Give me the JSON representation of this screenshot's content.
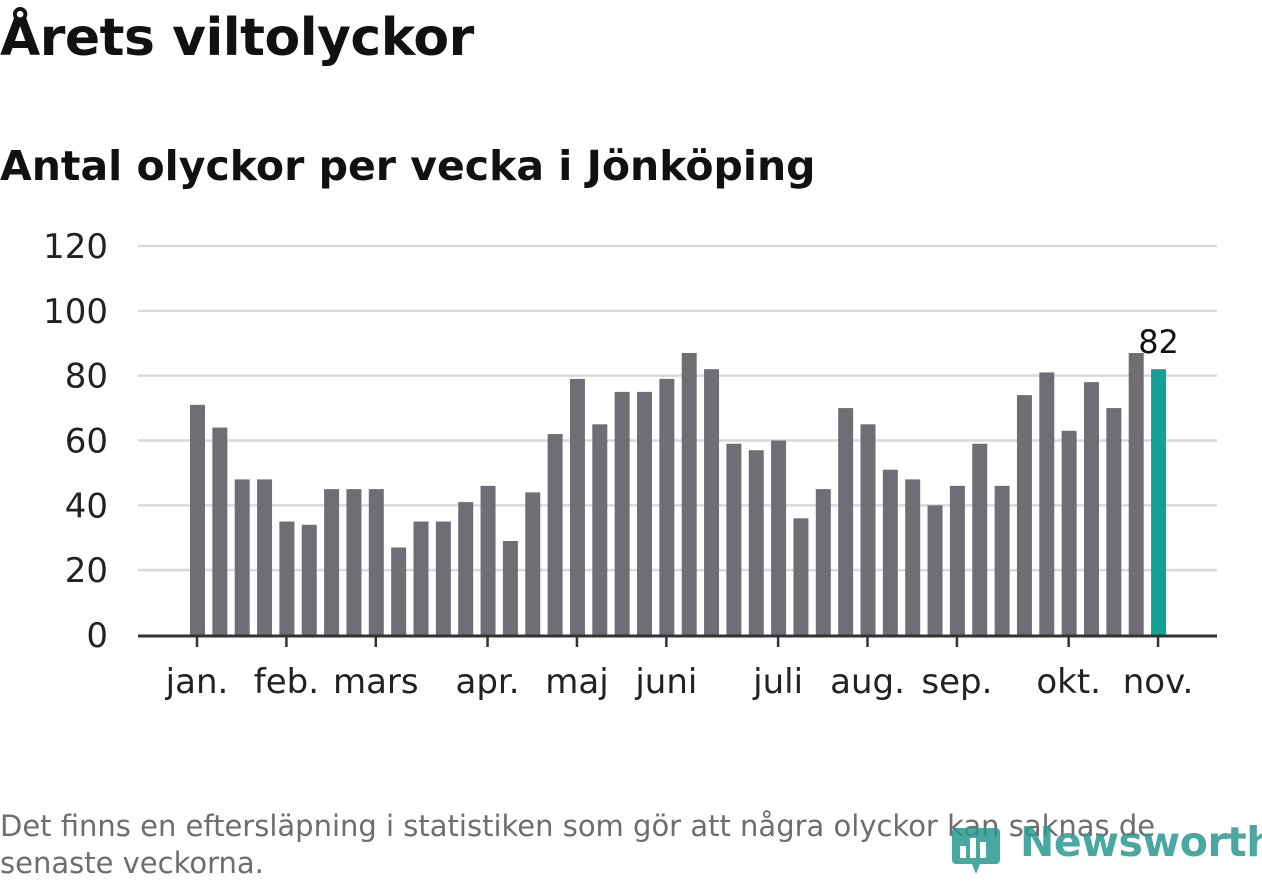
{
  "title": "Årets viltolyckor",
  "chart_data": {
    "type": "bar",
    "title": "Antal olyckor per vecka i Jönköping",
    "xlabel": "",
    "ylabel": "",
    "ylim": [
      0,
      120
    ],
    "yticks": [
      0,
      20,
      40,
      60,
      80,
      100,
      120
    ],
    "values": [
      71,
      64,
      48,
      48,
      35,
      34,
      45,
      45,
      45,
      27,
      35,
      35,
      41,
      46,
      29,
      44,
      62,
      79,
      65,
      75,
      75,
      79,
      87,
      82,
      59,
      57,
      60,
      36,
      45,
      70,
      65,
      51,
      48,
      40,
      46,
      59,
      46,
      74,
      81,
      63,
      78,
      70,
      87,
      82
    ],
    "month_labels": [
      {
        "label": "jan.",
        "index": 0.5
      },
      {
        "label": "feb.",
        "index": 4.5
      },
      {
        "label": "mars",
        "index": 8.5
      },
      {
        "label": "apr.",
        "index": 13.5
      },
      {
        "label": "maj",
        "index": 17.5
      },
      {
        "label": "juni",
        "index": 21.5
      },
      {
        "label": "juli",
        "index": 26.5
      },
      {
        "label": "aug.",
        "index": 30.5
      },
      {
        "label": "sep.",
        "index": 34.5
      },
      {
        "label": "okt.",
        "index": 39.5
      },
      {
        "label": "nov.",
        "index": 43.5
      }
    ],
    "highlight_index": 43,
    "highlight_label": "82",
    "colors": {
      "bar": "#6f6e75",
      "highlight": "#13a096",
      "grid": "#d9d9d9",
      "axis": "#333333"
    }
  },
  "footnote": "Det finns en eftersläpning i statistiken som gör att några olyckor kan saknas de senaste veckorna.",
  "logo": {
    "text": "Newsworthy"
  }
}
